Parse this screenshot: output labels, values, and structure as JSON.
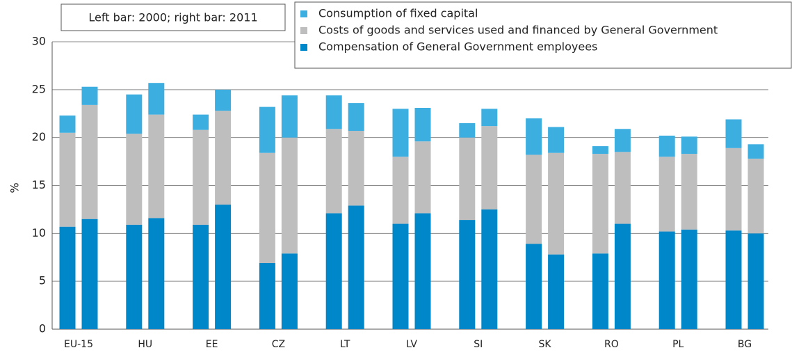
{
  "chart_data": {
    "type": "bar",
    "stacked": true,
    "grid": true,
    "annotation": "Left bar: 2000; right bar: 2011",
    "ylabel": "%",
    "ylim": [
      0,
      30
    ],
    "yticks": [
      0,
      5,
      10,
      15,
      20,
      25,
      30
    ],
    "categories": [
      "EU-15",
      "HU",
      "EE",
      "CZ",
      "LT",
      "LV",
      "SI",
      "SK",
      "RO",
      "PL",
      "BG"
    ],
    "series": [
      {
        "name": "Consumption of fixed capital",
        "color": "#3daee0",
        "values": [
          [
            1.8,
            1.9
          ],
          [
            4.1,
            3.3
          ],
          [
            1.6,
            2.2
          ],
          [
            4.8,
            4.4
          ],
          [
            3.5,
            2.9
          ],
          [
            5.0,
            3.5
          ],
          [
            1.5,
            1.8
          ],
          [
            3.8,
            2.7
          ],
          [
            0.8,
            2.4
          ],
          [
            2.2,
            1.8
          ],
          [
            3.0,
            1.5
          ]
        ]
      },
      {
        "name": "Costs of goods and services used and financed by General Government",
        "color": "#bebebe",
        "values": [
          [
            9.8,
            11.9
          ],
          [
            9.5,
            10.8
          ],
          [
            9.9,
            9.8
          ],
          [
            11.5,
            12.1
          ],
          [
            8.8,
            7.8
          ],
          [
            7.0,
            7.5
          ],
          [
            8.6,
            8.7
          ],
          [
            9.3,
            10.6
          ],
          [
            10.4,
            7.5
          ],
          [
            7.8,
            7.9
          ],
          [
            8.6,
            7.8
          ]
        ]
      },
      {
        "name": "Compensation of General Government employees",
        "color": "#0087c9",
        "values": [
          [
            10.7,
            11.5
          ],
          [
            10.9,
            11.6
          ],
          [
            10.9,
            13.0
          ],
          [
            6.9,
            7.9
          ],
          [
            12.1,
            12.9
          ],
          [
            11.0,
            12.1
          ],
          [
            11.4,
            12.5
          ],
          [
            8.9,
            7.8
          ],
          [
            7.9,
            11.0
          ],
          [
            10.2,
            10.4
          ],
          [
            10.3,
            10.0
          ]
        ]
      }
    ]
  }
}
